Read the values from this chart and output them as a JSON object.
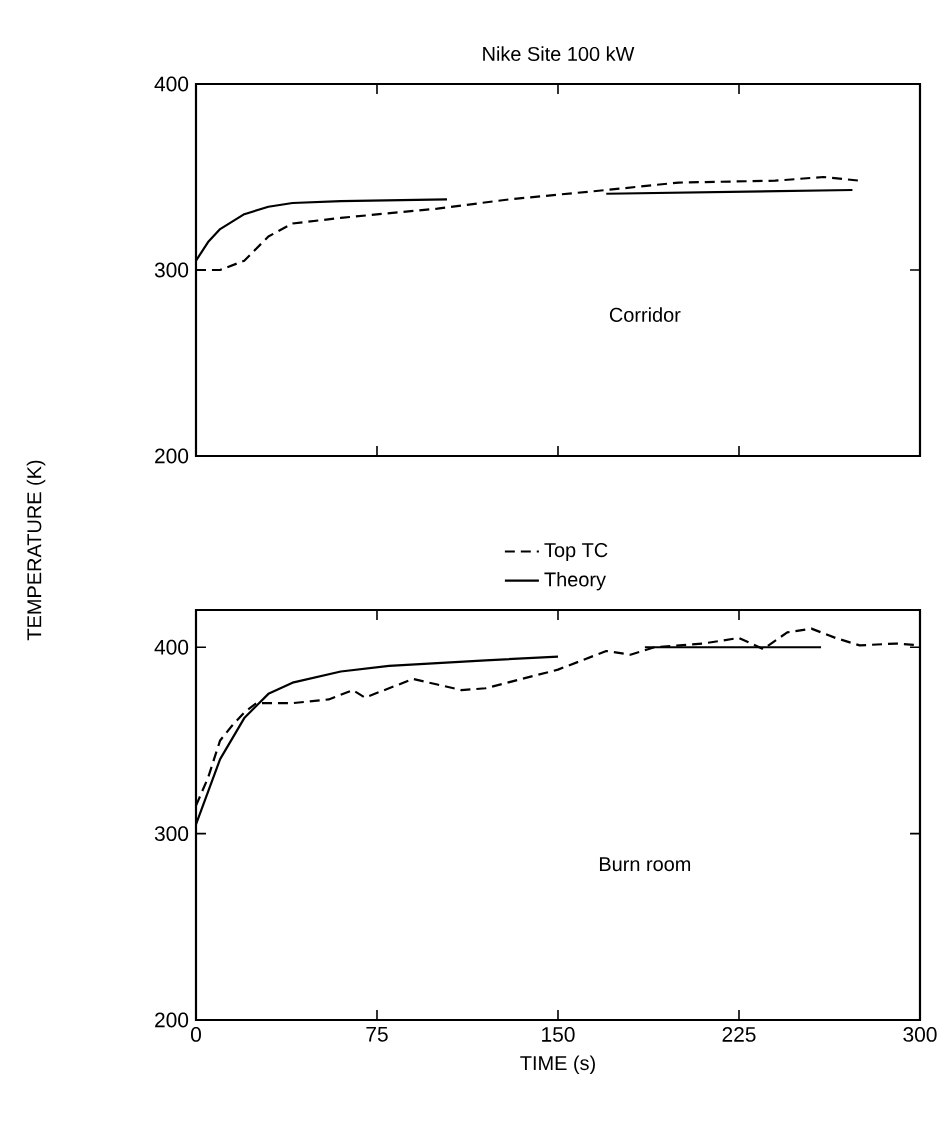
{
  "chart_data": [
    {
      "type": "line",
      "title": "Nike Site 100 kW",
      "annotations": [
        "Corridor"
      ],
      "xlim": [
        0,
        300
      ],
      "ylim": [
        200,
        400
      ],
      "xticks": [
        0,
        75,
        150,
        225,
        300
      ],
      "yticks": [
        200,
        300,
        400
      ],
      "tick_labels": "y",
      "series": [
        {
          "color": "#000000",
          "line_style": "dashed",
          "x": [
            0,
            10,
            20,
            30,
            40,
            60,
            100,
            130,
            170,
            200,
            240,
            260,
            275
          ],
          "values": [
            300,
            300,
            305,
            318,
            325,
            328,
            333,
            338,
            343,
            347,
            348,
            350,
            348
          ]
        },
        {
          "color": "#000000",
          "line_style": "solid",
          "x": [
            0,
            5,
            10,
            20,
            30,
            40,
            60,
            104,
            140,
            170,
            272
          ],
          "values": [
            305,
            315,
            322,
            330,
            334,
            336,
            337,
            338,
            null,
            341,
            343
          ]
        }
      ]
    },
    {
      "type": "line",
      "xlabel": "TIME (s)",
      "ylabel": "TEMPERATURE (K)",
      "annotations": [
        "Burn room"
      ],
      "xlim": [
        0,
        300
      ],
      "ylim": [
        200,
        420
      ],
      "xticks": [
        0,
        75,
        150,
        225,
        300
      ],
      "yticks": [
        200,
        300,
        400
      ],
      "legend": "top",
      "series": [
        {
          "name": "Top TC",
          "color": "#000000",
          "line_style": "dashed",
          "x": [
            0,
            5,
            10,
            15,
            20,
            25,
            40,
            55,
            65,
            70,
            80,
            90,
            100,
            110,
            120,
            135,
            150,
            160,
            170,
            180,
            190,
            210,
            225,
            235,
            245,
            255,
            265,
            275,
            290,
            300
          ],
          "values": [
            315,
            330,
            350,
            358,
            365,
            370,
            370,
            372,
            377,
            373,
            378,
            383,
            380,
            377,
            378,
            383,
            388,
            393,
            398,
            396,
            400,
            402,
            405,
            399,
            408,
            410,
            405,
            401,
            402,
            401
          ]
        },
        {
          "name": "Theory",
          "color": "#000000",
          "line_style": "solid",
          "x": [
            0,
            10,
            20,
            30,
            40,
            60,
            80,
            120,
            150,
            170,
            186,
            259
          ],
          "values": [
            305,
            340,
            362,
            375,
            381,
            387,
            390,
            393,
            395,
            null,
            400,
            400
          ]
        }
      ]
    }
  ]
}
